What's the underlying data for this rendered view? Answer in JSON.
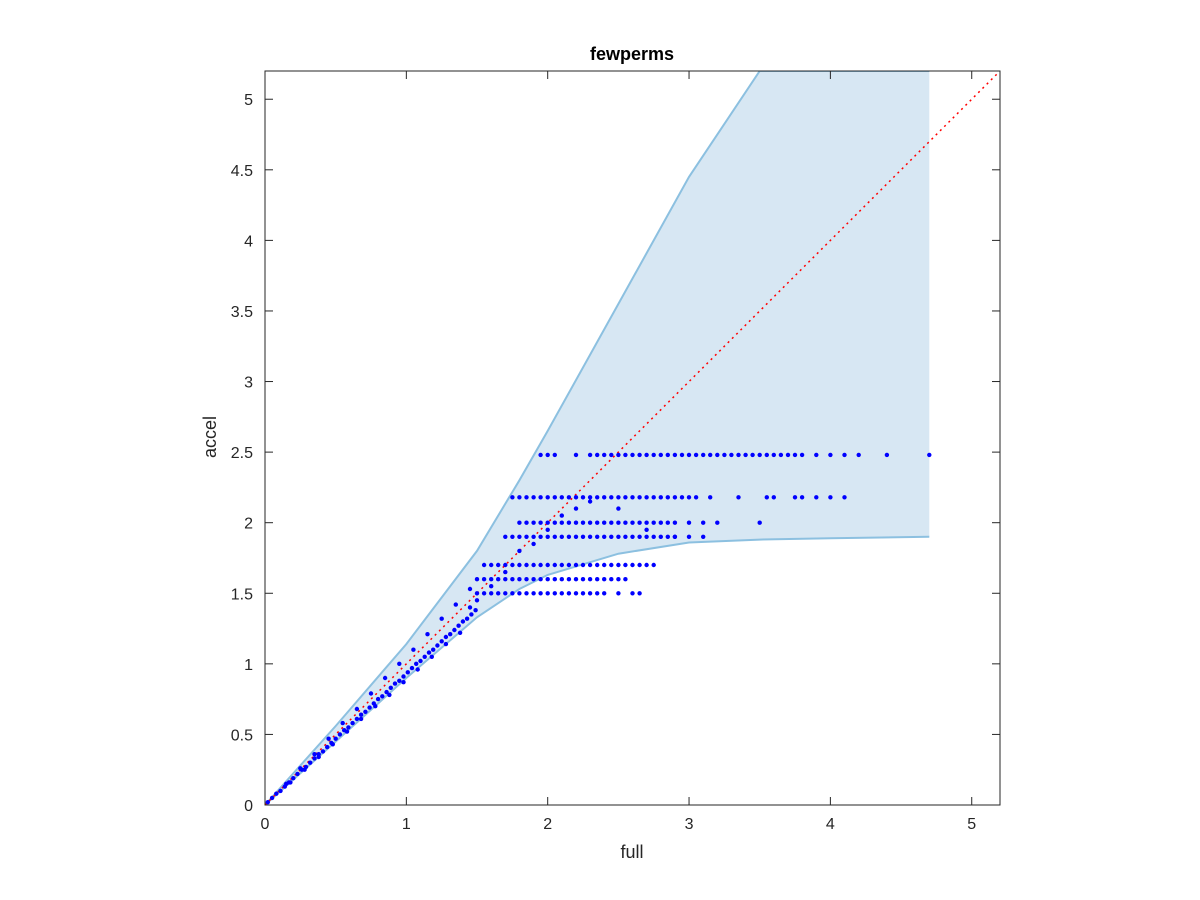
{
  "chart_data": {
    "type": "scatter",
    "title": "fewperms",
    "xlabel": "full",
    "ylabel": "accel",
    "xlim": [
      0,
      5.2
    ],
    "ylim": [
      0,
      5.2
    ],
    "xticks": [
      0,
      1,
      2,
      3,
      4,
      5
    ],
    "yticks": [
      0,
      0.5,
      1,
      1.5,
      2,
      2.5,
      3,
      3.5,
      4,
      4.5,
      5
    ],
    "grid": false,
    "colors": {
      "points": "#0000ff",
      "band_fill": "#d7e7f3",
      "band_edge": "#8cc0e0",
      "reference_line": "#ff0000",
      "axes": "#262626"
    },
    "reference_line": {
      "style": "dotted",
      "x": [
        0,
        5.2
      ],
      "y": [
        0,
        5.2
      ]
    },
    "band": {
      "x": [
        0,
        0.5,
        1.0,
        1.5,
        1.8,
        2.0,
        2.5,
        3.0,
        3.5,
        4.0,
        4.7
      ],
      "upper": [
        0,
        0.56,
        1.14,
        1.8,
        2.3,
        2.65,
        3.55,
        4.45,
        5.2,
        5.2,
        5.2
      ],
      "lower": [
        0,
        0.45,
        0.9,
        1.33,
        1.53,
        1.63,
        1.78,
        1.86,
        1.88,
        1.89,
        1.9
      ]
    },
    "series": [
      {
        "x": [
          0.02,
          0.05,
          0.08,
          0.11,
          0.14,
          0.17,
          0.2,
          0.23,
          0.26,
          0.29,
          0.32,
          0.35,
          0.38,
          0.41,
          0.44,
          0.47,
          0.5,
          0.53,
          0.56,
          0.59,
          0.62,
          0.65,
          0.68,
          0.71,
          0.74,
          0.77,
          0.8,
          0.83,
          0.86,
          0.89,
          0.92,
          0.95,
          0.98,
          1.01,
          1.04,
          1.07,
          1.1,
          1.13,
          1.16,
          1.19,
          1.22,
          1.25,
          1.28,
          1.31,
          1.34,
          1.37,
          1.4,
          1.43,
          1.46,
          1.49,
          0.15,
          0.25,
          0.35,
          0.45,
          0.55,
          0.65,
          0.75,
          0.85,
          0.95,
          1.05,
          1.15,
          1.25,
          1.35,
          1.45,
          0.18,
          0.28,
          0.38,
          0.48,
          0.58,
          0.68,
          0.78,
          0.88,
          0.98,
          1.08,
          1.18,
          1.28,
          1.38,
          1.5,
          1.55,
          1.6,
          1.65,
          1.7,
          1.75,
          1.8,
          1.85,
          1.9,
          1.95,
          2.0,
          2.05,
          2.1,
          2.15,
          2.2,
          2.25,
          2.3,
          2.35,
          2.4,
          2.5,
          2.6,
          2.65,
          1.5,
          1.55,
          1.6,
          1.65,
          1.7,
          1.75,
          1.8,
          1.85,
          1.9,
          1.95,
          2.0,
          2.05,
          2.1,
          2.15,
          2.2,
          2.25,
          2.3,
          2.35,
          2.4,
          2.45,
          2.5,
          2.55,
          1.55,
          1.6,
          1.65,
          1.7,
          1.75,
          1.8,
          1.85,
          1.9,
          1.95,
          2.0,
          2.05,
          2.1,
          2.15,
          2.2,
          2.25,
          2.3,
          2.35,
          2.4,
          2.45,
          2.5,
          2.55,
          2.6,
          2.65,
          2.7,
          2.75,
          1.7,
          1.75,
          1.8,
          1.85,
          1.9,
          1.95,
          2.0,
          2.05,
          2.1,
          2.15,
          2.2,
          2.25,
          2.3,
          2.35,
          2.4,
          2.45,
          2.5,
          2.55,
          2.6,
          2.65,
          2.7,
          2.75,
          2.8,
          2.85,
          2.9,
          3.0,
          3.1,
          1.8,
          1.85,
          1.9,
          1.95,
          2.0,
          2.05,
          2.1,
          2.15,
          2.2,
          2.25,
          2.3,
          2.35,
          2.4,
          2.45,
          2.5,
          2.55,
          2.6,
          2.65,
          2.7,
          2.75,
          2.8,
          2.85,
          2.9,
          3.0,
          3.2,
          3.5,
          1.95,
          2.0,
          2.05,
          2.2,
          2.3,
          2.35,
          2.4,
          2.45,
          2.5,
          2.55,
          2.6,
          2.65,
          2.7,
          2.75,
          2.8,
          2.85,
          2.9,
          2.95,
          3.0,
          3.05,
          3.1,
          3.15,
          3.2,
          3.25,
          3.3,
          3.35,
          3.4,
          3.45,
          3.5,
          3.55,
          3.6,
          3.65,
          3.7,
          3.75,
          3.8,
          3.9,
          4.0,
          4.1,
          4.2,
          4.4,
          4.7,
          1.75,
          1.8,
          1.85,
          1.9,
          1.95,
          2.0,
          2.05,
          2.1,
          2.15,
          2.2,
          2.25,
          2.3,
          2.35,
          2.4,
          2.45,
          2.5,
          2.55,
          2.6,
          2.65,
          2.7,
          2.75,
          2.8,
          2.85,
          2.9,
          2.95,
          3.0,
          3.05,
          3.15,
          3.35,
          3.55,
          3.6,
          3.75,
          3.8,
          3.9,
          4.0,
          4.1,
          1.45,
          1.5,
          1.6,
          1.7,
          1.8,
          1.9,
          2.0,
          2.1,
          2.2,
          2.3,
          2.5,
          2.7,
          2.9,
          3.1
        ],
        "y": [
          0.02,
          0.05,
          0.08,
          0.1,
          0.13,
          0.16,
          0.19,
          0.22,
          0.25,
          0.27,
          0.3,
          0.33,
          0.36,
          0.38,
          0.41,
          0.44,
          0.47,
          0.5,
          0.53,
          0.55,
          0.58,
          0.61,
          0.64,
          0.66,
          0.69,
          0.72,
          0.75,
          0.77,
          0.8,
          0.83,
          0.86,
          0.88,
          0.91,
          0.94,
          0.97,
          1.0,
          1.02,
          1.05,
          1.08,
          1.1,
          1.13,
          1.16,
          1.19,
          1.21,
          1.24,
          1.27,
          1.3,
          1.32,
          1.35,
          1.38,
          0.15,
          0.26,
          0.36,
          0.47,
          0.58,
          0.68,
          0.79,
          0.9,
          1.0,
          1.1,
          1.21,
          1.32,
          1.42,
          1.53,
          0.16,
          0.25,
          0.34,
          0.43,
          0.52,
          0.61,
          0.7,
          0.78,
          0.87,
          0.96,
          1.05,
          1.14,
          1.22,
          1.5,
          1.5,
          1.5,
          1.5,
          1.5,
          1.5,
          1.5,
          1.5,
          1.5,
          1.5,
          1.5,
          1.5,
          1.5,
          1.5,
          1.5,
          1.5,
          1.5,
          1.5,
          1.5,
          1.5,
          1.5,
          1.5,
          1.6,
          1.6,
          1.6,
          1.6,
          1.6,
          1.6,
          1.6,
          1.6,
          1.6,
          1.6,
          1.6,
          1.6,
          1.6,
          1.6,
          1.6,
          1.6,
          1.6,
          1.6,
          1.6,
          1.6,
          1.6,
          1.6,
          1.7,
          1.7,
          1.7,
          1.7,
          1.7,
          1.7,
          1.7,
          1.7,
          1.7,
          1.7,
          1.7,
          1.7,
          1.7,
          1.7,
          1.7,
          1.7,
          1.7,
          1.7,
          1.7,
          1.7,
          1.7,
          1.7,
          1.7,
          1.7,
          1.7,
          1.9,
          1.9,
          1.9,
          1.9,
          1.9,
          1.9,
          1.9,
          1.9,
          1.9,
          1.9,
          1.9,
          1.9,
          1.9,
          1.9,
          1.9,
          1.9,
          1.9,
          1.9,
          1.9,
          1.9,
          1.9,
          1.9,
          1.9,
          1.9,
          1.9,
          1.9,
          1.9,
          2.0,
          2.0,
          2.0,
          2.0,
          2.0,
          2.0,
          2.0,
          2.0,
          2.0,
          2.0,
          2.0,
          2.0,
          2.0,
          2.0,
          2.0,
          2.0,
          2.0,
          2.0,
          2.0,
          2.0,
          2.0,
          2.0,
          2.0,
          2.0,
          2.0,
          2.0,
          2.48,
          2.48,
          2.48,
          2.48,
          2.48,
          2.48,
          2.48,
          2.48,
          2.48,
          2.48,
          2.48,
          2.48,
          2.48,
          2.48,
          2.48,
          2.48,
          2.48,
          2.48,
          2.48,
          2.48,
          2.48,
          2.48,
          2.48,
          2.48,
          2.48,
          2.48,
          2.48,
          2.48,
          2.48,
          2.48,
          2.48,
          2.48,
          2.48,
          2.48,
          2.48,
          2.48,
          2.48,
          2.48,
          2.48,
          2.48,
          2.48,
          2.18,
          2.18,
          2.18,
          2.18,
          2.18,
          2.18,
          2.18,
          2.18,
          2.18,
          2.18,
          2.18,
          2.18,
          2.18,
          2.18,
          2.18,
          2.18,
          2.18,
          2.18,
          2.18,
          2.18,
          2.18,
          2.18,
          2.18,
          2.18,
          2.18,
          2.18,
          2.18,
          2.18,
          2.18,
          2.18,
          2.18,
          2.18,
          2.18,
          2.18,
          2.18,
          2.18,
          1.4,
          1.45,
          1.55,
          1.65,
          1.8,
          1.85,
          1.95,
          2.05,
          2.1,
          2.15,
          2.1,
          1.95,
          1.9,
          2.0
        ]
      }
    ]
  }
}
